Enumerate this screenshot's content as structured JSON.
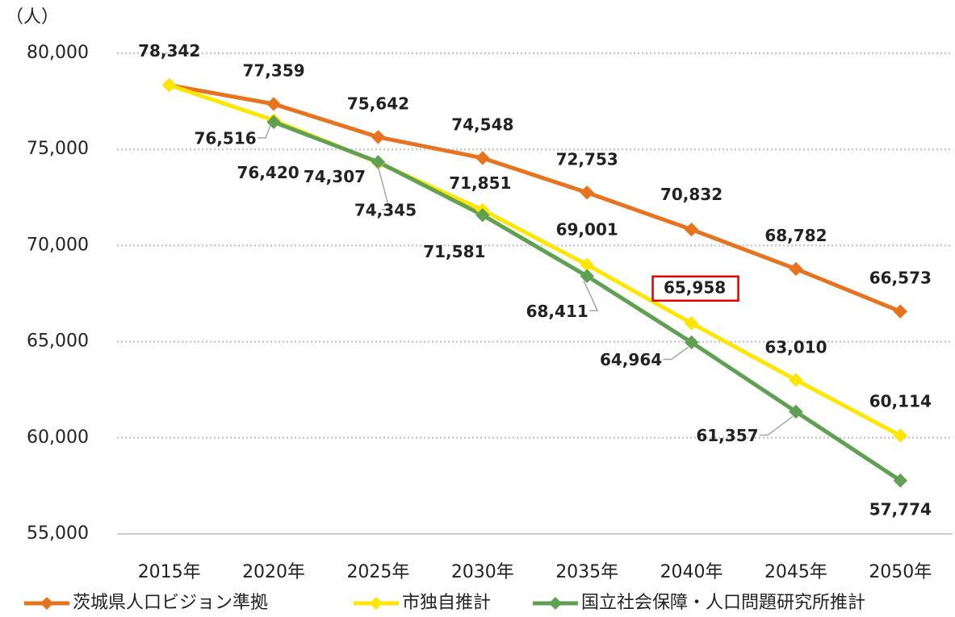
{
  "chart_data": {
    "type": "line",
    "y_label": "（人）",
    "categories": [
      "2015年",
      "2020年",
      "2025年",
      "2030年",
      "2035年",
      "2040年",
      "2045年",
      "2050年"
    ],
    "series": [
      {
        "name": "茨城県人口ビジョン準拠",
        "color": "#e8731f",
        "label_color": "#e8731f",
        "values": [
          78342,
          77359,
          75642,
          74548,
          72753,
          70832,
          68782,
          66573
        ],
        "value_labels": [
          "78,342",
          "77,359",
          "75,642",
          "74,548",
          "72,753",
          "70,832",
          "68,782",
          "66,573"
        ]
      },
      {
        "name": "市独自推計",
        "color": "#ffe600",
        "label_color": "#d8c200",
        "values": [
          78342,
          76516,
          74307,
          71851,
          69001,
          65958,
          63010,
          60114
        ],
        "value_labels": [
          null,
          "76,516",
          "74,307",
          "71,851",
          "69,001",
          "65,958",
          "63,010",
          "60,114"
        ]
      },
      {
        "name": "国立社会保障・人口問題研究所推計",
        "color": "#5fa052",
        "label_color": "#5b9a4e",
        "values": [
          null,
          76420,
          74345,
          71581,
          68411,
          64964,
          61357,
          57774
        ],
        "value_labels": [
          null,
          "76,420",
          "74,345",
          "71,581",
          "68,411",
          "64,964",
          "61,357",
          "57,774"
        ]
      }
    ],
    "ylim": [
      55000,
      80000
    ],
    "yticks": [
      {
        "value": 55000,
        "label": "55,000"
      },
      {
        "value": 60000,
        "label": "60,000"
      },
      {
        "value": 65000,
        "label": "65,000"
      },
      {
        "value": 70000,
        "label": "70,000"
      },
      {
        "value": 75000,
        "label": "75,000"
      },
      {
        "value": 80000,
        "label": "80,000"
      }
    ],
    "grid": true,
    "legend": "bottom"
  }
}
